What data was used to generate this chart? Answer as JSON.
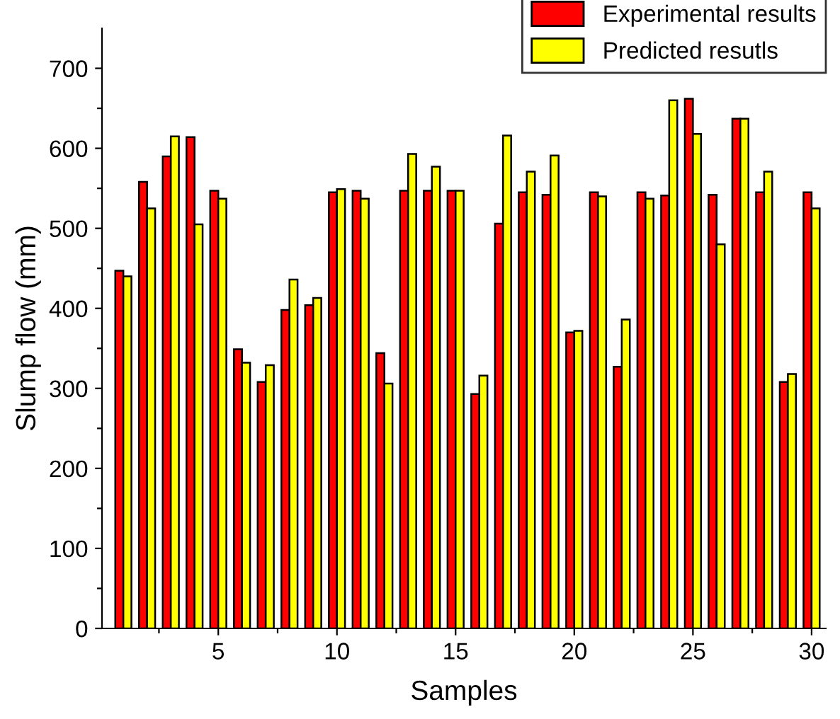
{
  "chart_data": {
    "type": "bar",
    "xlabel": "Samples",
    "ylabel": "Slump flow (mm)",
    "x": [
      1,
      2,
      3,
      4,
      5,
      6,
      7,
      8,
      9,
      10,
      11,
      12,
      13,
      14,
      15,
      16,
      17,
      18,
      19,
      20,
      21,
      22,
      23,
      24,
      25,
      26,
      27,
      28,
      29,
      30
    ],
    "series": [
      {
        "name": "Experimental results",
        "color": "#ff0000",
        "values": [
          447,
          558,
          590,
          614,
          547,
          349,
          308,
          398,
          404,
          545,
          547,
          344,
          547,
          547,
          547,
          293,
          506,
          545,
          542,
          370,
          545,
          327,
          545,
          541,
          662,
          542,
          637,
          545,
          308,
          545
        ]
      },
      {
        "name": "Predicted resutls",
        "color": "#ffff00",
        "values": [
          440,
          525,
          615,
          505,
          537,
          332,
          329,
          436,
          413,
          549,
          537,
          306,
          593,
          577,
          547,
          316,
          616,
          571,
          591,
          372,
          540,
          386,
          537,
          660,
          618,
          480,
          637,
          571,
          318,
          525
        ]
      }
    ],
    "xlim": [
      0.1,
      30.6
    ],
    "xticks": [
      {
        "value": 2.5,
        "label": null
      },
      5,
      {
        "value": 7.5,
        "label": null
      },
      10,
      {
        "value": 12.5,
        "label": null
      },
      15,
      {
        "value": 17.5,
        "label": null
      },
      20,
      {
        "value": 22.5,
        "label": null
      },
      25,
      {
        "value": 27.5,
        "label": null
      },
      30
    ],
    "ylim": [
      0,
      750
    ],
    "yticks": [
      0,
      {
        "value": 50,
        "label": null
      },
      100,
      {
        "value": 150,
        "label": null
      },
      200,
      {
        "value": 250,
        "label": null
      },
      300,
      {
        "value": 350,
        "label": null
      },
      400,
      {
        "value": 450,
        "label": null
      },
      500,
      {
        "value": 550,
        "label": null
      },
      600,
      {
        "value": 650,
        "label": null
      },
      700
    ],
    "legend": "top right",
    "grid": false
  }
}
